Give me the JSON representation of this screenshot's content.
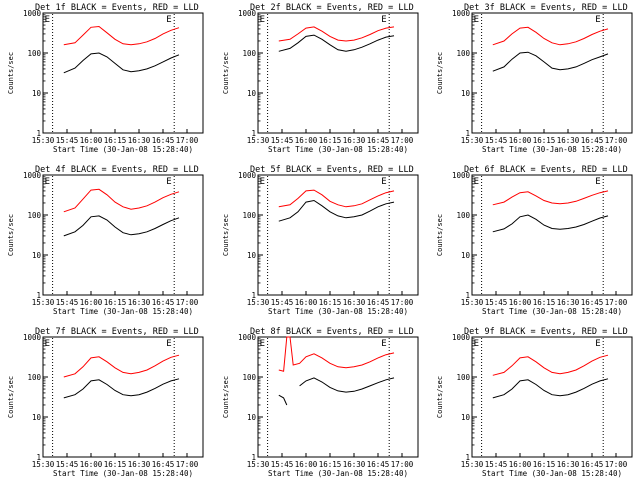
{
  "figure": {
    "xlabel": "Start Time (30-Jan-08 15:28:40)",
    "ylabel": "Counts/sec"
  },
  "colors": {
    "events": "#000000",
    "lld": "#ff0000",
    "axes": "#000000",
    "background": "#ffffff"
  },
  "chart_data": [
    {
      "type": "line",
      "title": "Det 1f BLACK = Events, RED = LLD",
      "xlabel": "Start Time (30-Jan-08 15:28:40)",
      "ylabel": "Counts/sec",
      "xlim": [
        "15:30",
        "17:10"
      ],
      "ylim": [
        1,
        1000
      ],
      "yscale": "log",
      "grid": false,
      "xticks": [
        "15:30",
        "15:45",
        "16:00",
        "16:15",
        "16:30",
        "16:45",
        "17:00"
      ],
      "yticks": [
        "1",
        "10",
        "100",
        "1000"
      ],
      "markers": [
        {
          "label": "E",
          "x": "15:36"
        },
        {
          "label": "E",
          "x": "16:52"
        }
      ],
      "x": [
        "15:43",
        "15:50",
        "15:55",
        "16:00",
        "16:05",
        "16:10",
        "16:15",
        "16:20",
        "16:25",
        "16:30",
        "16:35",
        "16:40",
        "16:45",
        "16:50",
        "16:55"
      ],
      "series": [
        {
          "name": "LLD",
          "color": "#ff0000",
          "values": [
            160,
            180,
            280,
            440,
            460,
            320,
            220,
            170,
            160,
            170,
            190,
            230,
            300,
            370,
            430
          ]
        },
        {
          "name": "Events",
          "color": "#000000",
          "values": [
            32,
            42,
            65,
            95,
            100,
            80,
            55,
            38,
            34,
            36,
            40,
            48,
            60,
            75,
            90
          ]
        }
      ]
    },
    {
      "type": "line",
      "title": "Det 2f BLACK = Events, RED = LLD",
      "xlabel": "Start Time (30-Jan-08 15:28:40)",
      "ylabel": "Counts/sec",
      "xlim": [
        "15:30",
        "17:10"
      ],
      "ylim": [
        1,
        1000
      ],
      "yscale": "log",
      "grid": false,
      "xticks": [
        "15:30",
        "15:45",
        "16:00",
        "16:15",
        "16:30",
        "16:45",
        "17:00"
      ],
      "yticks": [
        "1",
        "10",
        "100",
        "1000"
      ],
      "markers": [
        {
          "label": "E",
          "x": "15:36"
        },
        {
          "label": "E",
          "x": "16:52"
        }
      ],
      "x": [
        "15:43",
        "15:50",
        "15:55",
        "16:00",
        "16:05",
        "16:10",
        "16:15",
        "16:20",
        "16:25",
        "16:30",
        "16:35",
        "16:40",
        "16:45",
        "16:50",
        "16:55"
      ],
      "series": [
        {
          "name": "LLD",
          "color": "#ff0000",
          "values": [
            200,
            220,
            300,
            420,
            450,
            350,
            260,
            210,
            200,
            210,
            240,
            290,
            360,
            420,
            450
          ]
        },
        {
          "name": "Events",
          "color": "#000000",
          "values": [
            110,
            130,
            180,
            260,
            280,
            220,
            160,
            120,
            110,
            120,
            140,
            170,
            210,
            250,
            270
          ]
        }
      ]
    },
    {
      "type": "line",
      "title": "Det 3f BLACK = Events, RED = LLD",
      "xlabel": "Start Time (30-Jan-08 15:28:40)",
      "ylabel": "Counts/sec",
      "xlim": [
        "15:30",
        "17:10"
      ],
      "ylim": [
        1,
        1000
      ],
      "yscale": "log",
      "grid": false,
      "xticks": [
        "15:30",
        "15:45",
        "16:00",
        "16:15",
        "16:30",
        "16:45",
        "17:00"
      ],
      "yticks": [
        "1",
        "10",
        "100",
        "1000"
      ],
      "markers": [
        {
          "label": "E",
          "x": "15:36"
        },
        {
          "label": "E",
          "x": "16:52"
        }
      ],
      "x": [
        "15:43",
        "15:50",
        "15:55",
        "16:00",
        "16:05",
        "16:10",
        "16:15",
        "16:20",
        "16:25",
        "16:30",
        "16:35",
        "16:40",
        "16:45",
        "16:50",
        "16:55"
      ],
      "series": [
        {
          "name": "LLD",
          "color": "#ff0000",
          "values": [
            160,
            200,
            300,
            420,
            440,
            330,
            230,
            180,
            160,
            170,
            190,
            230,
            290,
            350,
            400
          ]
        },
        {
          "name": "Events",
          "color": "#000000",
          "values": [
            35,
            45,
            70,
            100,
            105,
            85,
            60,
            42,
            38,
            40,
            45,
            55,
            68,
            80,
            95
          ]
        }
      ]
    },
    {
      "type": "line",
      "title": "Det 4f BLACK = Events, RED = LLD",
      "xlabel": "Start Time (30-Jan-08 15:28:40)",
      "ylabel": "Counts/sec",
      "xlim": [
        "15:30",
        "17:10"
      ],
      "ylim": [
        1,
        1000
      ],
      "yscale": "log",
      "grid": false,
      "xticks": [
        "15:30",
        "15:45",
        "16:00",
        "16:15",
        "16:30",
        "16:45",
        "17:00"
      ],
      "yticks": [
        "1",
        "10",
        "100",
        "1000"
      ],
      "markers": [
        {
          "label": "E",
          "x": "15:36"
        },
        {
          "label": "E",
          "x": "16:52"
        }
      ],
      "x": [
        "15:43",
        "15:50",
        "15:55",
        "16:00",
        "16:05",
        "16:10",
        "16:15",
        "16:20",
        "16:25",
        "16:30",
        "16:35",
        "16:40",
        "16:45",
        "16:50",
        "16:55"
      ],
      "series": [
        {
          "name": "LLD",
          "color": "#ff0000",
          "values": [
            120,
            150,
            250,
            420,
            440,
            320,
            210,
            160,
            140,
            150,
            170,
            210,
            270,
            330,
            380
          ]
        },
        {
          "name": "Events",
          "color": "#000000",
          "values": [
            30,
            38,
            55,
            90,
            95,
            75,
            50,
            36,
            32,
            34,
            38,
            46,
            58,
            72,
            85
          ]
        }
      ]
    },
    {
      "type": "line",
      "title": "Det 5f BLACK = Events, RED = LLD",
      "xlabel": "Start Time (30-Jan-08 15:28:40)",
      "ylabel": "Counts/sec",
      "xlim": [
        "15:30",
        "17:10"
      ],
      "ylim": [
        1,
        1000
      ],
      "yscale": "log",
      "grid": false,
      "xticks": [
        "15:30",
        "15:45",
        "16:00",
        "16:15",
        "16:30",
        "16:45",
        "17:00"
      ],
      "yticks": [
        "1",
        "10",
        "100",
        "1000"
      ],
      "markers": [
        {
          "label": "E",
          "x": "15:36"
        },
        {
          "label": "E",
          "x": "16:52"
        }
      ],
      "x": [
        "15:43",
        "15:50",
        "15:55",
        "16:00",
        "16:05",
        "16:10",
        "16:15",
        "16:20",
        "16:25",
        "16:30",
        "16:35",
        "16:40",
        "16:45",
        "16:50",
        "16:55"
      ],
      "series": [
        {
          "name": "LLD",
          "color": "#ff0000",
          "values": [
            160,
            180,
            260,
            400,
            420,
            320,
            220,
            180,
            160,
            170,
            190,
            240,
            300,
            360,
            400
          ]
        },
        {
          "name": "Events",
          "color": "#000000",
          "values": [
            70,
            85,
            120,
            210,
            230,
            170,
            120,
            95,
            85,
            90,
            100,
            125,
            160,
            190,
            210
          ]
        }
      ]
    },
    {
      "type": "line",
      "title": "Det 6f BLACK = Events, RED = LLD",
      "xlabel": "Start Time (30-Jan-08 15:28:40)",
      "ylabel": "Counts/sec",
      "xlim": [
        "15:30",
        "17:10"
      ],
      "ylim": [
        1,
        1000
      ],
      "yscale": "log",
      "grid": false,
      "xticks": [
        "15:30",
        "15:45",
        "16:00",
        "16:15",
        "16:30",
        "16:45",
        "17:00"
      ],
      "yticks": [
        "1",
        "10",
        "100",
        "1000"
      ],
      "markers": [
        {
          "label": "E",
          "x": "15:36"
        },
        {
          "label": "E",
          "x": "16:52"
        }
      ],
      "x": [
        "15:43",
        "15:50",
        "15:55",
        "16:00",
        "16:05",
        "16:10",
        "16:15",
        "16:20",
        "16:25",
        "16:30",
        "16:35",
        "16:40",
        "16:45",
        "16:50",
        "16:55"
      ],
      "series": [
        {
          "name": "LLD",
          "color": "#ff0000",
          "values": [
            180,
            210,
            280,
            360,
            380,
            300,
            230,
            200,
            190,
            200,
            220,
            260,
            310,
            360,
            400
          ]
        },
        {
          "name": "Events",
          "color": "#000000",
          "values": [
            38,
            45,
            60,
            90,
            100,
            78,
            56,
            46,
            44,
            46,
            50,
            58,
            70,
            84,
            95
          ]
        }
      ]
    },
    {
      "type": "line",
      "title": "Det 7f BLACK = Events, RED = LLD",
      "xlabel": "Start Time (30-Jan-08 15:28:40)",
      "ylabel": "Counts/sec",
      "xlim": [
        "15:30",
        "17:10"
      ],
      "ylim": [
        1,
        1000
      ],
      "yscale": "log",
      "grid": false,
      "xticks": [
        "15:30",
        "15:45",
        "16:00",
        "16:15",
        "16:30",
        "16:45",
        "17:00"
      ],
      "yticks": [
        "1",
        "10",
        "100",
        "1000"
      ],
      "markers": [
        {
          "label": "E",
          "x": "15:36"
        },
        {
          "label": "E",
          "x": "16:52"
        }
      ],
      "x": [
        "15:43",
        "15:50",
        "15:55",
        "16:00",
        "16:05",
        "16:10",
        "16:15",
        "16:20",
        "16:25",
        "16:30",
        "16:35",
        "16:40",
        "16:45",
        "16:50",
        "16:55"
      ],
      "series": [
        {
          "name": "LLD",
          "color": "#ff0000",
          "values": [
            100,
            120,
            180,
            300,
            320,
            240,
            170,
            130,
            120,
            130,
            150,
            190,
            250,
            310,
            350
          ]
        },
        {
          "name": "Events",
          "color": "#000000",
          "values": [
            30,
            36,
            50,
            80,
            85,
            65,
            46,
            36,
            34,
            36,
            42,
            52,
            66,
            80,
            90
          ]
        }
      ]
    },
    {
      "type": "line",
      "title": "Det 8f BLACK = Events, RED = LLD",
      "xlabel": "Start Time (30-Jan-08 15:28:40)",
      "ylabel": "Counts/sec",
      "xlim": [
        "15:30",
        "17:10"
      ],
      "ylim": [
        1,
        1000
      ],
      "yscale": "log",
      "grid": false,
      "xticks": [
        "15:30",
        "15:45",
        "16:00",
        "16:15",
        "16:30",
        "16:45",
        "17:00"
      ],
      "yticks": [
        "1",
        "10",
        "100",
        "1000"
      ],
      "markers": [
        {
          "label": "E",
          "x": "15:36"
        },
        {
          "label": "E",
          "x": "16:52"
        }
      ],
      "x": [
        "15:43",
        "15:46",
        "15:48",
        "15:50",
        "15:52",
        "15:56",
        "16:00",
        "16:05",
        "16:10",
        "16:15",
        "16:20",
        "16:25",
        "16:30",
        "16:35",
        "16:40",
        "16:45",
        "16:50",
        "16:55"
      ],
      "series": [
        {
          "name": "LLD",
          "color": "#ff0000",
          "values": [
            150,
            140,
            1000,
            1000,
            200,
            220,
            320,
            380,
            300,
            220,
            180,
            170,
            180,
            200,
            240,
            300,
            360,
            400
          ]
        },
        {
          "name": "Events",
          "color": "#000000",
          "values": [
            35,
            30,
            20,
            null,
            null,
            60,
            80,
            95,
            75,
            55,
            45,
            42,
            44,
            50,
            60,
            72,
            85,
            95
          ]
        }
      ]
    },
    {
      "type": "line",
      "title": "Det 9f BLACK = Events, RED = LLD",
      "xlabel": "Start Time (30-Jan-08 15:28:40)",
      "ylabel": "Counts/sec",
      "xlim": [
        "15:30",
        "17:10"
      ],
      "ylim": [
        1,
        1000
      ],
      "yscale": "log",
      "grid": false,
      "xticks": [
        "15:30",
        "15:45",
        "16:00",
        "16:15",
        "16:30",
        "16:45",
        "17:00"
      ],
      "yticks": [
        "1",
        "10",
        "100",
        "1000"
      ],
      "markers": [
        {
          "label": "E",
          "x": "15:36"
        },
        {
          "label": "E",
          "x": "16:52"
        }
      ],
      "x": [
        "15:43",
        "15:50",
        "15:55",
        "16:00",
        "16:05",
        "16:10",
        "16:15",
        "16:20",
        "16:25",
        "16:30",
        "16:35",
        "16:40",
        "16:45",
        "16:50",
        "16:55"
      ],
      "series": [
        {
          "name": "LLD",
          "color": "#ff0000",
          "values": [
            110,
            130,
            190,
            300,
            320,
            240,
            170,
            130,
            120,
            130,
            150,
            190,
            250,
            310,
            350
          ]
        },
        {
          "name": "Events",
          "color": "#000000",
          "values": [
            30,
            36,
            50,
            80,
            85,
            65,
            46,
            36,
            34,
            36,
            42,
            52,
            66,
            80,
            90
          ]
        }
      ]
    }
  ]
}
